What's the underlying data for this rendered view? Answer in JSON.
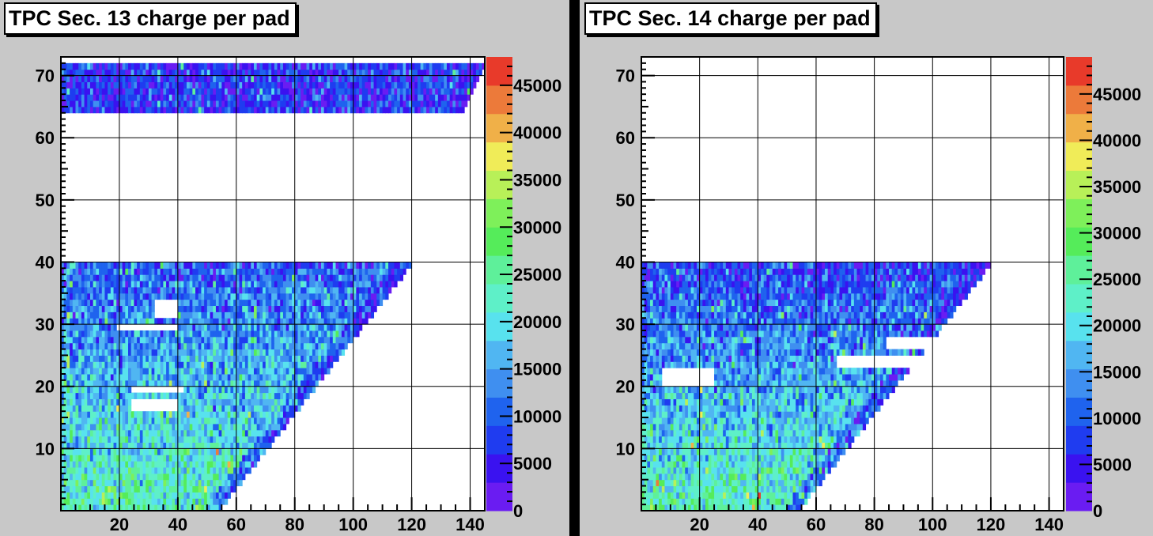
{
  "chart_data": [
    {
      "type": "heatmap",
      "title": "TPC Sec. 13 charge per pad",
      "xlabel": "",
      "ylabel": "",
      "xlim": [
        0,
        145
      ],
      "ylim": [
        0,
        73
      ],
      "xticks": [
        20,
        40,
        60,
        80,
        100,
        120,
        140
      ],
      "yticks": [
        10,
        20,
        30,
        40,
        50,
        60,
        70
      ],
      "grid": true,
      "colorbar": {
        "min": 0,
        "max": 48000,
        "ticks": [
          0,
          5000,
          10000,
          15000,
          20000,
          25000,
          30000,
          35000,
          40000,
          45000
        ]
      },
      "regions": [
        {
          "rows": [
            1,
            40
          ],
          "pads_at_row1": 55,
          "pads_at_row40": 120,
          "mean_bottom": 24000,
          "mean_top": 10000
        },
        {
          "rows": [
            65,
            72
          ],
          "pads_at_row65": 138,
          "pads_at_row72": 145,
          "mean": 7000
        }
      ],
      "empty_patches": [
        {
          "rows": [
            32,
            34
          ],
          "x": [
            33,
            40
          ]
        },
        {
          "rows": [
            30,
            30
          ],
          "x": [
            20,
            40
          ]
        },
        {
          "rows": [
            17,
            18
          ],
          "x": [
            25,
            40
          ]
        },
        {
          "rows": [
            20,
            20
          ],
          "x": [
            25,
            42
          ]
        }
      ]
    },
    {
      "type": "heatmap",
      "title": "TPC Sec. 14 charge per pad",
      "xlabel": "",
      "ylabel": "",
      "xlim": [
        0,
        145
      ],
      "ylim": [
        0,
        73
      ],
      "xticks": [
        20,
        40,
        60,
        80,
        100,
        120,
        140
      ],
      "yticks": [
        10,
        20,
        30,
        40,
        50,
        60,
        70
      ],
      "grid": true,
      "colorbar": {
        "min": 0,
        "max": 49000,
        "ticks": [
          0,
          5000,
          10000,
          15000,
          20000,
          25000,
          30000,
          35000,
          40000,
          45000
        ]
      },
      "regions": [
        {
          "rows": [
            1,
            40
          ],
          "pads_at_row1": 55,
          "pads_at_row40": 120,
          "mean_bottom": 24000,
          "mean_top": 8000
        }
      ],
      "empty_patches": [
        {
          "rows": [
            24,
            25
          ],
          "x": [
            68,
            96
          ]
        },
        {
          "rows": [
            21,
            23
          ],
          "x": [
            8,
            25
          ]
        },
        {
          "rows": [
            27,
            28
          ],
          "x": [
            85,
            100
          ]
        }
      ]
    }
  ]
}
